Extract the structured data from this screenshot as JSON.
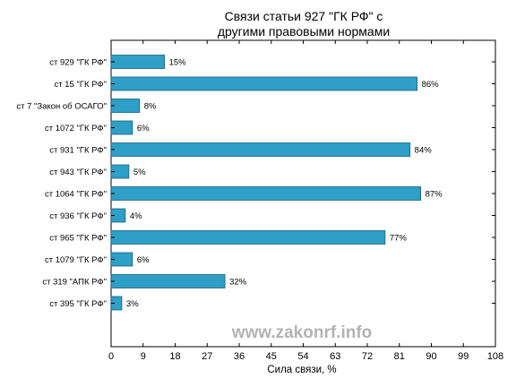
{
  "chart_data": {
    "type": "bar",
    "orientation": "horizontal",
    "title": [
      "Связи статьи 927 \"ГК РФ\" с",
      "другими правовыми нормами"
    ],
    "xlabel": "Сила связи, %",
    "ylabel": "",
    "xlim": [
      0,
      108
    ],
    "xticks": [
      "0",
      "9",
      "18",
      "27",
      "36",
      "45",
      "54",
      "63",
      "72",
      "81",
      "90",
      "99",
      "108"
    ],
    "categories": [
      "ст 929 \"ГК РФ\"",
      "ст 15 \"ГК РФ\"",
      "ст 7 \"Закон об ОСАГО\"",
      "ст 1072 \"ГК РФ\"",
      "ст 931 \"ГК РФ\"",
      "ст 943 \"ГК РФ\"",
      "ст 1064 \"ГК РФ\"",
      "ст 936 \"ГК РФ\"",
      "ст 965 \"ГК РФ\"",
      "ст 1079 \"ГК РФ\"",
      "ст 319 \"АПК РФ\"",
      "ст 395 \"ГК РФ\""
    ],
    "values": [
      15,
      86,
      8,
      6,
      84,
      5,
      87,
      4,
      77,
      6,
      32,
      3
    ],
    "value_labels": [
      "15%",
      "86%",
      "8%",
      "6%",
      "84%",
      "5%",
      "87%",
      "4%",
      "77%",
      "6%",
      "32%",
      "3%"
    ],
    "bar_color": "#2e9fc6",
    "grid": false,
    "legend": "none",
    "watermark": "www.zakonrf.info"
  }
}
